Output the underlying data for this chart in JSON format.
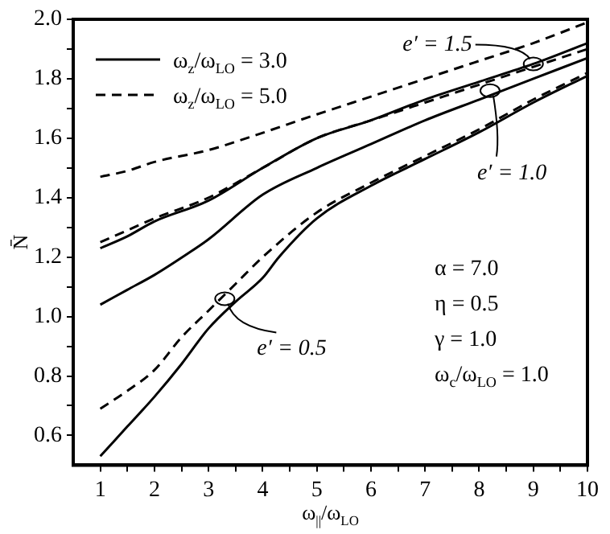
{
  "chart_data": {
    "type": "line",
    "xlabel": "ω$_{||}$/ω$_{LO}$",
    "ylabel": "N̄",
    "xlim": [
      0.5,
      10
    ],
    "ylim": [
      0.5,
      2.0
    ],
    "xticks": [
      1,
      2,
      3,
      4,
      5,
      6,
      7,
      8,
      9,
      10,
      {
        "value": 1.5,
        "label": null
      },
      {
        "value": 2.5,
        "label": null
      },
      {
        "value": 3.5,
        "label": null
      },
      {
        "value": 4.5,
        "label": null
      },
      {
        "value": 5.5,
        "label": null
      },
      {
        "value": 6.5,
        "label": null
      },
      {
        "value": 7.5,
        "label": null
      },
      {
        "value": 8.5,
        "label": null
      },
      {
        "value": 9.5,
        "label": null
      }
    ],
    "yticks": [
      {
        "value": 0.6,
        "label": "0.6"
      },
      {
        "value": 0.8,
        "label": "0.8"
      },
      {
        "value": 1.0,
        "label": "1.0"
      },
      {
        "value": 1.2,
        "label": "1.2"
      },
      {
        "value": 1.4,
        "label": "1.4"
      },
      {
        "value": 1.6,
        "label": "1.6"
      },
      {
        "value": 1.8,
        "label": "1.8"
      },
      {
        "value": 2.0,
        "label": "2.0"
      },
      {
        "value": 0.7,
        "label": null
      },
      {
        "value": 0.9,
        "label": null
      },
      {
        "value": 1.1,
        "label": null
      },
      {
        "value": 1.3,
        "label": null
      },
      {
        "value": 1.5,
        "label": null
      },
      {
        "value": 1.7,
        "label": null
      },
      {
        "value": 1.9,
        "label": null
      }
    ],
    "legend": "top left",
    "marker": "none",
    "grid": false,
    "series": [
      {
        "name": "ω$_{z}$/ω$_{LO}$ = 3.0",
        "color": "#000000",
        "line_style": "solid",
        "x": [
          1,
          1.5,
          2,
          3,
          4,
          5,
          6,
          7,
          8,
          9,
          10
        ],
        "values": [
          1.23,
          1.27,
          1.32,
          1.39,
          1.5,
          1.6,
          1.66,
          1.73,
          1.79,
          1.85,
          1.92
        ]
      },
      {
        "name": "ω$_{z}$/ω$_{LO}$ = 5.0",
        "color": "#000000",
        "line_style": "dashed",
        "x": [
          1,
          1.5,
          2,
          3,
          3.7,
          5,
          6,
          7,
          8,
          9,
          10
        ],
        "values": [
          1.47,
          1.49,
          1.52,
          1.56,
          1.6,
          1.68,
          1.74,
          1.8,
          1.86,
          1.92,
          1.99
        ]
      },
      {
        "color": "#000000",
        "line_style": "solid",
        "x": [
          1,
          1.5,
          2,
          2.6,
          3,
          4,
          5,
          6,
          7,
          8,
          9,
          10
        ],
        "values": [
          1.04,
          1.09,
          1.14,
          1.21,
          1.26,
          1.41,
          1.5,
          1.58,
          1.66,
          1.73,
          1.8,
          1.87
        ]
      },
      {
        "color": "#000000",
        "line_style": "dashed",
        "x": [
          1,
          1.5,
          2,
          3,
          4,
          5,
          6,
          7,
          8,
          9,
          10
        ],
        "values": [
          1.25,
          1.29,
          1.33,
          1.4,
          1.5,
          1.6,
          1.66,
          1.72,
          1.78,
          1.84,
          1.9
        ]
      },
      {
        "color": "#000000",
        "line_style": "solid",
        "x": [
          1,
          1.5,
          2,
          2.5,
          3,
          3.5,
          4,
          4.3,
          5,
          6,
          7,
          8,
          9,
          10
        ],
        "values": [
          0.53,
          0.63,
          0.73,
          0.84,
          0.96,
          1.05,
          1.13,
          1.2,
          1.33,
          1.44,
          1.53,
          1.62,
          1.72,
          1.81
        ]
      },
      {
        "color": "#000000",
        "line_style": "dashed",
        "x": [
          1,
          1.5,
          2,
          2.5,
          3,
          3.5,
          4,
          5,
          6,
          7,
          8,
          9,
          10
        ],
        "values": [
          0.69,
          0.75,
          0.82,
          0.93,
          1.02,
          1.11,
          1.2,
          1.35,
          1.45,
          1.54,
          1.63,
          1.73,
          1.82
        ]
      }
    ],
    "annotations": [
      {
        "text": "e′ = 1.5",
        "x": 9,
        "y": 1.85
      },
      {
        "text": "e′ = 1.0",
        "x": 8.2,
        "y": 1.76
      },
      {
        "text": "e′ = 0.5",
        "x": 3.3,
        "y": 1.06
      },
      "α = 7.0",
      "η = 0.5",
      "γ = 1.0",
      "ω$_{c}$/ω$_{LO}$ = 1.0"
    ]
  }
}
